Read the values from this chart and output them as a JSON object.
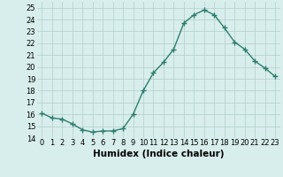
{
  "x": [
    0,
    1,
    2,
    3,
    4,
    5,
    6,
    7,
    8,
    9,
    10,
    11,
    12,
    13,
    14,
    15,
    16,
    17,
    18,
    19,
    20,
    21,
    22,
    23
  ],
  "y": [
    16.1,
    15.7,
    15.6,
    15.2,
    14.7,
    14.5,
    14.6,
    14.6,
    14.8,
    16.0,
    18.0,
    19.5,
    20.4,
    21.5,
    23.7,
    24.4,
    24.8,
    24.4,
    23.3,
    22.1,
    21.5,
    20.5,
    19.9,
    19.2
  ],
  "line_color": "#2e7d6e",
  "marker": "+",
  "markersize": 4,
  "linewidth": 1.0,
  "markeredgewidth": 1.0,
  "bg_color": "#d8eeec",
  "grid_color": "#b0ceca",
  "xlabel": "Humidex (Indice chaleur)",
  "ylim": [
    14,
    25.5
  ],
  "xlim": [
    -0.5,
    23.5
  ],
  "yticks": [
    14,
    15,
    16,
    17,
    18,
    19,
    20,
    21,
    22,
    23,
    24,
    25
  ],
  "xtick_labels": [
    "0",
    "1",
    "2",
    "3",
    "4",
    "5",
    "6",
    "7",
    "8",
    "9",
    "10",
    "11",
    "12",
    "13",
    "14",
    "15",
    "16",
    "17",
    "18",
    "19",
    "20",
    "21",
    "22",
    "23"
  ],
  "tick_fontsize": 6.0,
  "xlabel_fontsize": 7.5,
  "xlabel_bold": true
}
